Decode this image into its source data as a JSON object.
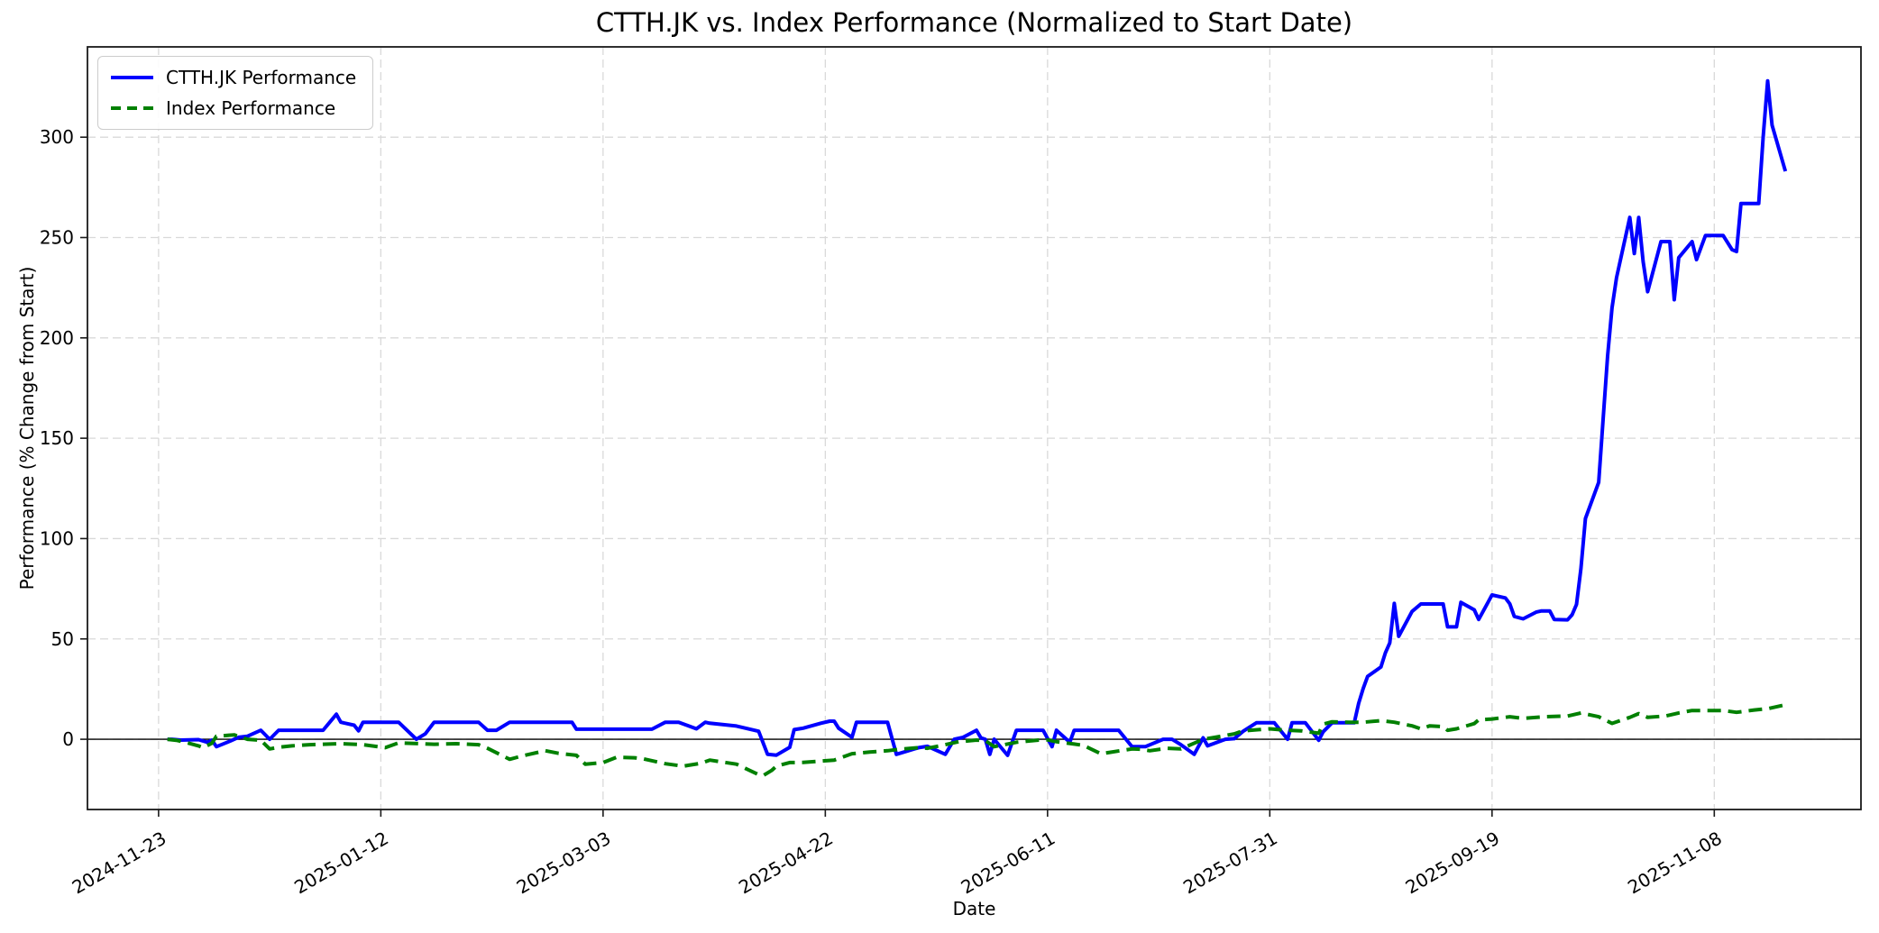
{
  "title": "CTTH.JK vs. Index Performance (Normalized to Start Date)",
  "xlabel": "Date",
  "ylabel": "Performance (% Change from Start)",
  "legend": {
    "entries": [
      {
        "label": "CTTH.JK Performance",
        "color": "#0000ff",
        "style": "solid"
      },
      {
        "label": "Index Performance",
        "color": "#008000",
        "style": "dashed"
      }
    ]
  },
  "colors": {
    "series1": "#0000ff",
    "series2": "#008000",
    "grid": "#d9d9d9",
    "spine": "#1a1a1a",
    "zero_line": "#000000",
    "background": "#ffffff"
  },
  "chart_data": {
    "type": "line",
    "title": "CTTH.JK vs. Index Performance (Normalized to Start Date)",
    "xlabel": "Date",
    "ylabel": "Performance (% Change from Start)",
    "grid": true,
    "grid_style": "dashed",
    "legend_position": "upper left",
    "zero_line": true,
    "x_tick_rotation": 30,
    "x_ticks": [
      "2024-11-23",
      "2025-01-12",
      "2025-03-03",
      "2025-04-22",
      "2025-06-11",
      "2025-07-31",
      "2025-09-19",
      "2025-11-08"
    ],
    "y_ticks": [
      0,
      50,
      100,
      150,
      200,
      250,
      300
    ],
    "xlim": [
      "2024-11-07",
      "2025-12-11"
    ],
    "ylim": [
      -35,
      345
    ],
    "series": [
      {
        "name": "CTTH.JK Performance",
        "color": "#0000ff",
        "style": "solid",
        "points": [
          [
            "2024-11-25",
            0
          ],
          [
            "2024-11-26",
            0
          ],
          [
            "2024-11-28",
            -0.4
          ],
          [
            "2024-12-02",
            -0.2
          ],
          [
            "2024-12-04",
            -1.5
          ],
          [
            "2024-12-05",
            -0.4
          ],
          [
            "2024-12-06",
            -3.7
          ],
          [
            "2024-12-09",
            -1
          ],
          [
            "2024-12-11",
            1
          ],
          [
            "2024-12-13",
            1.5
          ],
          [
            "2024-12-16",
            4.5
          ],
          [
            "2024-12-18",
            0
          ],
          [
            "2024-12-20",
            4.5
          ],
          [
            "2024-12-23",
            4.5
          ],
          [
            "2024-12-30",
            4.5
          ],
          [
            "2025-01-02",
            12.5
          ],
          [
            "2025-01-03",
            8.5
          ],
          [
            "2025-01-06",
            7
          ],
          [
            "2025-01-07",
            4.2
          ],
          [
            "2025-01-08",
            8.5
          ],
          [
            "2025-01-14",
            8.5
          ],
          [
            "2025-01-16",
            8.5
          ],
          [
            "2025-01-20",
            0
          ],
          [
            "2025-01-22",
            2.7
          ],
          [
            "2025-01-24",
            8.5
          ],
          [
            "2025-01-31",
            8.5
          ],
          [
            "2025-02-03",
            8.5
          ],
          [
            "2025-02-05",
            4.5
          ],
          [
            "2025-02-07",
            4.5
          ],
          [
            "2025-02-10",
            8.5
          ],
          [
            "2025-02-24",
            8.5
          ],
          [
            "2025-02-25",
            5
          ],
          [
            "2025-02-28",
            5
          ],
          [
            "2025-03-07",
            5
          ],
          [
            "2025-03-14",
            5
          ],
          [
            "2025-03-17",
            8.5
          ],
          [
            "2025-03-20",
            8.5
          ],
          [
            "2025-03-24",
            5.2
          ],
          [
            "2025-03-26",
            8.5
          ],
          [
            "2025-03-27",
            8
          ],
          [
            "2025-04-02",
            6.6
          ],
          [
            "2025-04-07",
            4
          ],
          [
            "2025-04-09",
            -7.5
          ],
          [
            "2025-04-11",
            -7.9
          ],
          [
            "2025-04-14",
            -4
          ],
          [
            "2025-04-15",
            4.8
          ],
          [
            "2025-04-17",
            5.5
          ],
          [
            "2025-04-21",
            8
          ],
          [
            "2025-04-23",
            9
          ],
          [
            "2025-04-24",
            9
          ],
          [
            "2025-04-25",
            5.5
          ],
          [
            "2025-04-28",
            1
          ],
          [
            "2025-04-29",
            8.5
          ],
          [
            "2025-05-06",
            8.5
          ],
          [
            "2025-05-08",
            -7.5
          ],
          [
            "2025-05-13",
            -4.2
          ],
          [
            "2025-05-15",
            -3.5
          ],
          [
            "2025-05-19",
            -7.5
          ],
          [
            "2025-05-21",
            0
          ],
          [
            "2025-05-23",
            1
          ],
          [
            "2025-05-26",
            4.5
          ],
          [
            "2025-05-27",
            0.7
          ],
          [
            "2025-05-28",
            0
          ],
          [
            "2025-05-29",
            -7.5
          ],
          [
            "2025-05-30",
            0
          ],
          [
            "2025-06-02",
            -8
          ],
          [
            "2025-06-04",
            4.5
          ],
          [
            "2025-06-10",
            4.5
          ],
          [
            "2025-06-12",
            -3.7
          ],
          [
            "2025-06-13",
            4.5
          ],
          [
            "2025-06-16",
            -1.5
          ],
          [
            "2025-06-17",
            4.5
          ],
          [
            "2025-06-27",
            4.5
          ],
          [
            "2025-06-30",
            -3.7
          ],
          [
            "2025-07-03",
            -3.7
          ],
          [
            "2025-07-07",
            0
          ],
          [
            "2025-07-09",
            0
          ],
          [
            "2025-07-11",
            -2.7
          ],
          [
            "2025-07-14",
            -7.5
          ],
          [
            "2025-07-16",
            0.7
          ],
          [
            "2025-07-17",
            -3.3
          ],
          [
            "2025-07-21",
            0
          ],
          [
            "2025-07-23",
            0.3
          ],
          [
            "2025-07-25",
            4
          ],
          [
            "2025-07-28",
            8.2
          ],
          [
            "2025-08-01",
            8.2
          ],
          [
            "2025-08-04",
            0
          ],
          [
            "2025-08-05",
            8.2
          ],
          [
            "2025-08-08",
            8.2
          ],
          [
            "2025-08-11",
            -0.5
          ],
          [
            "2025-08-12",
            3.7
          ],
          [
            "2025-08-14",
            8.2
          ],
          [
            "2025-08-19",
            8.2
          ],
          [
            "2025-08-20",
            17.9
          ],
          [
            "2025-08-21",
            25.3
          ],
          [
            "2025-08-22",
            31.3
          ],
          [
            "2025-08-25",
            36
          ],
          [
            "2025-08-26",
            43
          ],
          [
            "2025-08-27",
            48
          ],
          [
            "2025-08-28",
            67.7
          ],
          [
            "2025-08-29",
            51.3
          ],
          [
            "2025-09-01",
            63.7
          ],
          [
            "2025-09-03",
            67.4
          ],
          [
            "2025-09-08",
            67.4
          ],
          [
            "2025-09-09",
            56
          ],
          [
            "2025-09-11",
            56
          ],
          [
            "2025-09-12",
            68.2
          ],
          [
            "2025-09-15",
            64.5
          ],
          [
            "2025-09-16",
            59.7
          ],
          [
            "2025-09-19",
            71.9
          ],
          [
            "2025-09-22",
            70.4
          ],
          [
            "2025-09-23",
            67.5
          ],
          [
            "2025-09-24",
            61.2
          ],
          [
            "2025-09-26",
            60
          ],
          [
            "2025-09-29",
            63.4
          ],
          [
            "2025-09-30",
            63.9
          ],
          [
            "2025-10-02",
            63.9
          ],
          [
            "2025-10-03",
            59.7
          ],
          [
            "2025-10-06",
            59.5
          ],
          [
            "2025-10-07",
            62
          ],
          [
            "2025-10-08",
            67.2
          ],
          [
            "2025-10-09",
            85
          ],
          [
            "2025-10-10",
            110
          ],
          [
            "2025-10-13",
            128
          ],
          [
            "2025-10-14",
            160
          ],
          [
            "2025-10-15",
            191
          ],
          [
            "2025-10-16",
            215
          ],
          [
            "2025-10-17",
            230
          ],
          [
            "2025-10-20",
            260
          ],
          [
            "2025-10-21",
            242
          ],
          [
            "2025-10-22",
            260
          ],
          [
            "2025-10-23",
            238
          ],
          [
            "2025-10-24",
            223
          ],
          [
            "2025-10-27",
            248
          ],
          [
            "2025-10-29",
            248
          ],
          [
            "2025-10-30",
            219
          ],
          [
            "2025-10-31",
            240
          ],
          [
            "2025-11-03",
            248
          ],
          [
            "2025-11-04",
            239
          ],
          [
            "2025-11-06",
            251
          ],
          [
            "2025-11-10",
            251
          ],
          [
            "2025-11-12",
            244
          ],
          [
            "2025-11-13",
            243
          ],
          [
            "2025-11-14",
            267
          ],
          [
            "2025-11-18",
            267
          ],
          [
            "2025-11-19",
            300
          ],
          [
            "2025-11-20",
            328
          ],
          [
            "2025-11-21",
            306
          ],
          [
            "2025-11-24",
            283
          ]
        ]
      },
      {
        "name": "Index Performance",
        "color": "#008000",
        "style": "dashed",
        "points": [
          [
            "2024-11-25",
            0
          ],
          [
            "2024-11-27",
            -0.5
          ],
          [
            "2024-11-29",
            -1.5
          ],
          [
            "2024-12-02",
            -3.3
          ],
          [
            "2024-12-03",
            -4.2
          ],
          [
            "2024-12-05",
            -2
          ],
          [
            "2024-12-06",
            1.5
          ],
          [
            "2024-12-10",
            2.2
          ],
          [
            "2024-12-13",
            0
          ],
          [
            "2024-12-16",
            -0.5
          ],
          [
            "2024-12-18",
            -4.8
          ],
          [
            "2024-12-20",
            -4
          ],
          [
            "2024-12-23",
            -3.3
          ],
          [
            "2024-12-27",
            -2.7
          ],
          [
            "2025-01-03",
            -2.2
          ],
          [
            "2025-01-08",
            -2.7
          ],
          [
            "2025-01-13",
            -4.2
          ],
          [
            "2025-01-16",
            -1.8
          ],
          [
            "2025-01-21",
            -2.2
          ],
          [
            "2025-01-24",
            -2.5
          ],
          [
            "2025-01-29",
            -2.2
          ],
          [
            "2025-02-03",
            -2.7
          ],
          [
            "2025-02-05",
            -4.5
          ],
          [
            "2025-02-10",
            -10
          ],
          [
            "2025-02-13",
            -8.2
          ],
          [
            "2025-02-18",
            -5.7
          ],
          [
            "2025-02-21",
            -7
          ],
          [
            "2025-02-25",
            -8
          ],
          [
            "2025-02-27",
            -12.4
          ],
          [
            "2025-03-03",
            -11.6
          ],
          [
            "2025-03-06",
            -9
          ],
          [
            "2025-03-10",
            -9.2
          ],
          [
            "2025-03-12",
            -9.7
          ],
          [
            "2025-03-17",
            -12.2
          ],
          [
            "2025-03-21",
            -13.4
          ],
          [
            "2025-03-25",
            -12
          ],
          [
            "2025-03-27",
            -10.4
          ],
          [
            "2025-04-02",
            -12.4
          ],
          [
            "2025-04-07",
            -17.6
          ],
          [
            "2025-04-08",
            -18.1
          ],
          [
            "2025-04-10",
            -15.4
          ],
          [
            "2025-04-11",
            -13.4
          ],
          [
            "2025-04-14",
            -11.6
          ],
          [
            "2025-04-17",
            -11.5
          ],
          [
            "2025-04-21",
            -10.9
          ],
          [
            "2025-04-24",
            -10.4
          ],
          [
            "2025-04-28",
            -7.2
          ],
          [
            "2025-05-02",
            -6.4
          ],
          [
            "2025-05-06",
            -5.7
          ],
          [
            "2025-05-09",
            -4.9
          ],
          [
            "2025-05-13",
            -4.2
          ],
          [
            "2025-05-15",
            -4.5
          ],
          [
            "2025-05-19",
            -2.7
          ],
          [
            "2025-05-22",
            -1.2
          ],
          [
            "2025-05-26",
            -0.4
          ],
          [
            "2025-05-28",
            -0.7
          ],
          [
            "2025-05-30",
            -3.7
          ],
          [
            "2025-06-04",
            -1.5
          ],
          [
            "2025-06-09",
            -0.4
          ],
          [
            "2025-06-11",
            -0.3
          ],
          [
            "2025-06-13",
            -1.2
          ],
          [
            "2025-06-17",
            -2.4
          ],
          [
            "2025-06-19",
            -3
          ],
          [
            "2025-06-23",
            -7.2
          ],
          [
            "2025-06-25",
            -6.5
          ],
          [
            "2025-06-30",
            -4.8
          ],
          [
            "2025-07-02",
            -5
          ],
          [
            "2025-07-04",
            -5.7
          ],
          [
            "2025-07-08",
            -4.5
          ],
          [
            "2025-07-11",
            -4.8
          ],
          [
            "2025-07-15",
            -1
          ],
          [
            "2025-07-16",
            0
          ],
          [
            "2025-07-18",
            0.7
          ],
          [
            "2025-07-23",
            2.7
          ],
          [
            "2025-07-25",
            4.2
          ],
          [
            "2025-07-31",
            5.2
          ],
          [
            "2025-08-04",
            4.5
          ],
          [
            "2025-08-07",
            4.2
          ],
          [
            "2025-08-11",
            3
          ],
          [
            "2025-08-12",
            7.5
          ],
          [
            "2025-08-14",
            8.7
          ],
          [
            "2025-08-18",
            8.5
          ],
          [
            "2025-08-21",
            8.5
          ],
          [
            "2025-08-25",
            9.3
          ],
          [
            "2025-08-28",
            8.5
          ],
          [
            "2025-09-01",
            6.7
          ],
          [
            "2025-09-03",
            5.2
          ],
          [
            "2025-09-05",
            6.7
          ],
          [
            "2025-09-08",
            6.3
          ],
          [
            "2025-09-09",
            4.5
          ],
          [
            "2025-09-11",
            5.2
          ],
          [
            "2025-09-15",
            7.8
          ],
          [
            "2025-09-16",
            9.7
          ],
          [
            "2025-09-19",
            10.1
          ],
          [
            "2025-09-23",
            11.2
          ],
          [
            "2025-09-26",
            10.4
          ],
          [
            "2025-10-01",
            11.2
          ],
          [
            "2025-10-06",
            11.6
          ],
          [
            "2025-10-09",
            13.1
          ],
          [
            "2025-10-13",
            11.2
          ],
          [
            "2025-10-14",
            10.1
          ],
          [
            "2025-10-16",
            7.9
          ],
          [
            "2025-10-20",
            10.9
          ],
          [
            "2025-10-22",
            12.8
          ],
          [
            "2025-10-24",
            10.9
          ],
          [
            "2025-10-28",
            11.6
          ],
          [
            "2025-10-31",
            13.1
          ],
          [
            "2025-11-03",
            14.3
          ],
          [
            "2025-11-10",
            14.3
          ],
          [
            "2025-11-13",
            13.4
          ],
          [
            "2025-11-17",
            14.6
          ],
          [
            "2025-11-20",
            15.2
          ],
          [
            "2025-11-24",
            17.2
          ]
        ]
      }
    ]
  }
}
